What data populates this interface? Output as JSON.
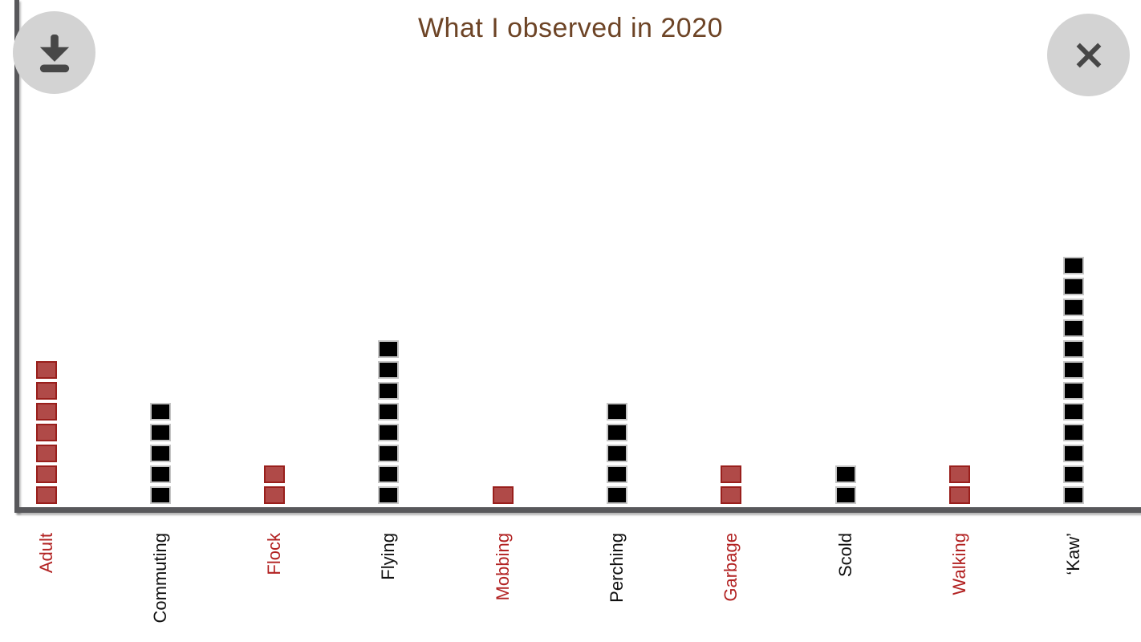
{
  "header": {
    "title": "What I observed in 2020"
  },
  "buttons": {
    "download": {
      "icon": "download-icon"
    },
    "close": {
      "icon": "close-icon"
    }
  },
  "colors": {
    "background": "#ffffff",
    "title": "#6d4426",
    "axis": "#58585b",
    "button_bg": "#d3d3d3",
    "button_glyph": "#474747"
  },
  "palette": {
    "red": {
      "fill": "#b04a48",
      "border": "#991f1c",
      "label": "#b22222"
    },
    "black": {
      "fill": "#000000",
      "border": "#c4c4c4",
      "label": "#111111"
    }
  },
  "chart_data": {
    "type": "bar",
    "variant": "unit-square-columns",
    "title": "What I observed in 2020",
    "categories": [
      "Adult",
      "Commuting",
      "Flock",
      "Flying",
      "Mobbing",
      "Perching",
      "Garbage",
      "Scold",
      "Walking",
      "‘Kaw’"
    ],
    "values": [
      7,
      5,
      2,
      8,
      1,
      5,
      2,
      2,
      2,
      12
    ],
    "color_keys": [
      "red",
      "black",
      "red",
      "black",
      "red",
      "black",
      "red",
      "black",
      "red",
      "black"
    ],
    "unit_value": 1,
    "xlabel": "",
    "ylabel": "",
    "ylim": [
      0,
      12
    ],
    "grid": false,
    "legend": false,
    "x_tick_rotation": 90
  }
}
